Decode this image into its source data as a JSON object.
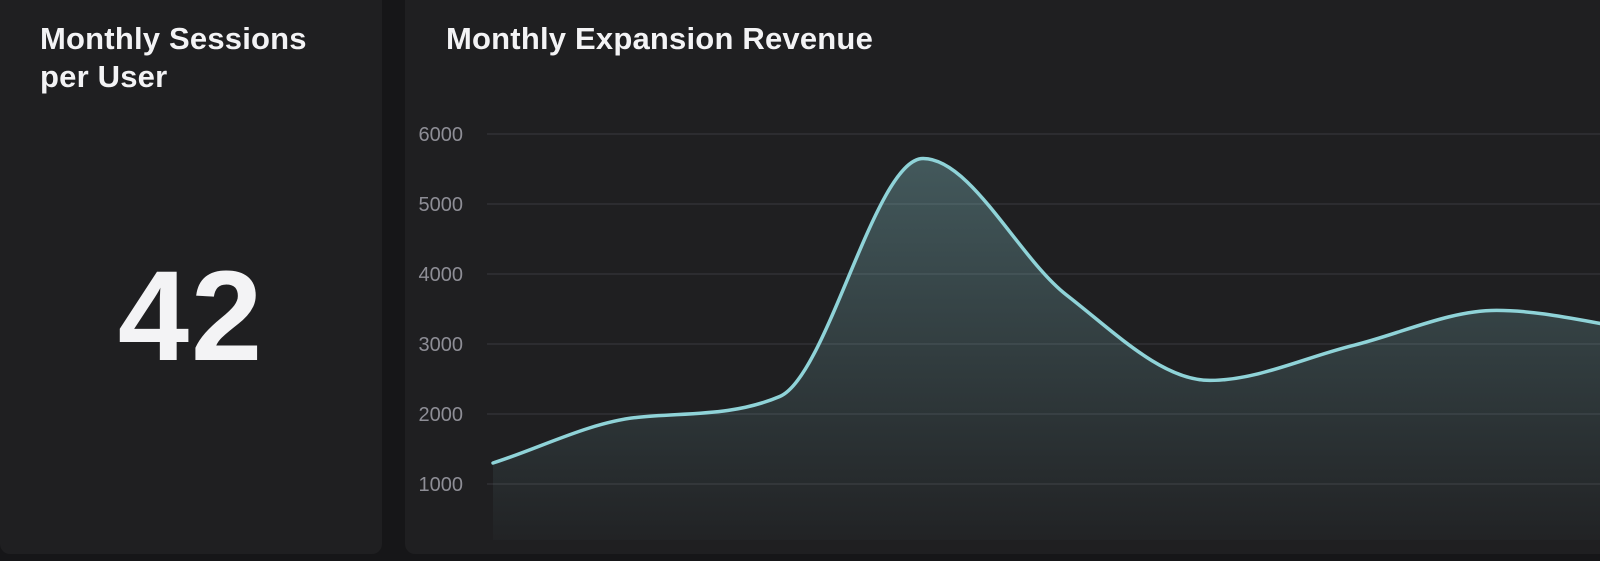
{
  "kpi": {
    "title": "Monthly Sessions per User",
    "value": "42"
  },
  "chart_panel": {
    "title": "Monthly Expansion Revenue"
  },
  "colors": {
    "background": "#161618",
    "card": "#1f1f21",
    "text": "#f3f3f5",
    "axis_text": "#8e8e96",
    "gridline": "#3a3a3e",
    "line": "#8fd3d8"
  },
  "chart_data": {
    "type": "area",
    "title": "Monthly Expansion Revenue",
    "xlabel": "",
    "ylabel": "",
    "ylim": [
      500,
      6000
    ],
    "yticks": [
      1000,
      2000,
      3000,
      4000,
      5000,
      6000
    ],
    "grid": true,
    "x": [
      0,
      1,
      2,
      3,
      4,
      5,
      6,
      7,
      8
    ],
    "series": [
      {
        "name": "Monthly Expansion Revenue",
        "values": [
          1300,
          1950,
          2250,
          5650,
          3700,
          2480,
          2980,
          3480,
          3200
        ]
      }
    ]
  }
}
